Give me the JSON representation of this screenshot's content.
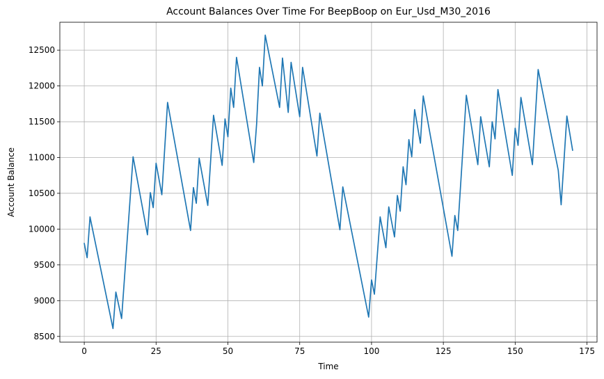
{
  "chart_data": {
    "type": "line",
    "title": "Account Balances Over Time For BeepBoop on Eur_Usd_M30_2016",
    "xlabel": "Time",
    "ylabel": "Account Balance",
    "xlim": [
      -8.5,
      178.5
    ],
    "ylim": [
      8420,
      12890
    ],
    "xticks": [
      0,
      25,
      50,
      75,
      100,
      125,
      150,
      175
    ],
    "xtick_labels": [
      "0",
      "25",
      "50",
      "75",
      "100",
      "125",
      "150",
      "175"
    ],
    "yticks": [
      8500,
      9000,
      9500,
      10000,
      10500,
      11000,
      11500,
      12000,
      12500
    ],
    "ytick_labels": [
      "8500",
      "9000",
      "9500",
      "10000",
      "10500",
      "11000",
      "11500",
      "12000",
      "12500"
    ],
    "grid": true,
    "series": [
      {
        "color": "#1f77b4",
        "x": [
          0,
          1,
          2,
          10,
          11,
          13,
          17,
          22,
          23,
          24,
          25,
          27,
          29,
          37,
          38,
          39,
          40,
          43,
          45,
          48,
          49,
          50,
          51,
          52,
          53,
          59,
          60,
          61,
          62,
          63,
          68,
          69,
          71,
          72,
          75,
          76,
          81,
          82,
          89,
          90,
          99,
          100,
          101,
          103,
          105,
          106,
          108,
          109,
          110,
          111,
          112,
          113,
          114,
          115,
          117,
          118,
          128,
          129,
          130,
          133,
          137,
          138,
          141,
          142,
          143,
          144,
          149,
          150,
          151,
          152,
          156,
          158,
          165,
          166,
          168,
          170
        ],
        "y": [
          9800,
          9600,
          10170,
          8610,
          9120,
          8750,
          11010,
          9920,
          10510,
          10300,
          10920,
          10480,
          11770,
          9980,
          10580,
          10360,
          10990,
          10330,
          11590,
          10890,
          11540,
          11290,
          11970,
          11700,
          12400,
          10930,
          11470,
          12260,
          12000,
          12710,
          11700,
          12390,
          11630,
          12330,
          11570,
          12260,
          11020,
          11620,
          9990,
          10590,
          8770,
          9290,
          9090,
          10170,
          9740,
          10310,
          9890,
          10470,
          10250,
          10870,
          10620,
          11250,
          11010,
          11670,
          11200,
          11860,
          9620,
          10190,
          9980,
          11870,
          10900,
          11570,
          10870,
          11500,
          11260,
          11950,
          10750,
          11410,
          11170,
          11840,
          10900,
          12230,
          10820,
          10340,
          11580,
          11100
        ]
      }
    ]
  }
}
